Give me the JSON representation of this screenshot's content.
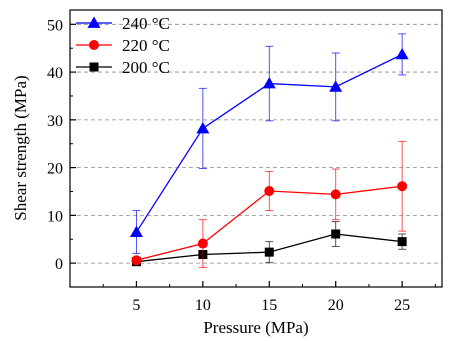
{
  "chart_data": {
    "type": "line",
    "title": "",
    "xlabel": "Pressure (MPa)",
    "ylabel": "Shear strength (MPa)",
    "x": [
      5,
      10,
      15,
      20,
      25
    ],
    "xticks": [
      "5",
      "10",
      "15",
      "20",
      "25"
    ],
    "yticks": [
      "0",
      "10",
      "20",
      "30",
      "40",
      "50"
    ],
    "xlim": [
      0,
      28
    ],
    "ylim": [
      -5,
      53
    ],
    "grid": "horizontal dashed",
    "legend_position": "top-left",
    "series": [
      {
        "name": "240 °C",
        "color": "#0000ff",
        "marker": "triangle",
        "values": [
          6.5,
          28.2,
          37.6,
          36.9,
          43.7
        ],
        "errors": [
          4.5,
          8.4,
          7.8,
          7.1,
          4.3
        ]
      },
      {
        "name": "220 °C",
        "color": "#ff0000",
        "marker": "circle",
        "values": [
          0.6,
          4.1,
          15.1,
          14.4,
          16.1
        ],
        "errors": [
          0.6,
          5.0,
          4.1,
          5.3,
          9.4
        ]
      },
      {
        "name": "200 °C",
        "color": "#000000",
        "marker": "square",
        "values": [
          0.3,
          1.8,
          2.3,
          6.1,
          4.5
        ],
        "errors": [
          0.3,
          0.7,
          2.2,
          2.6,
          1.6
        ]
      }
    ]
  }
}
